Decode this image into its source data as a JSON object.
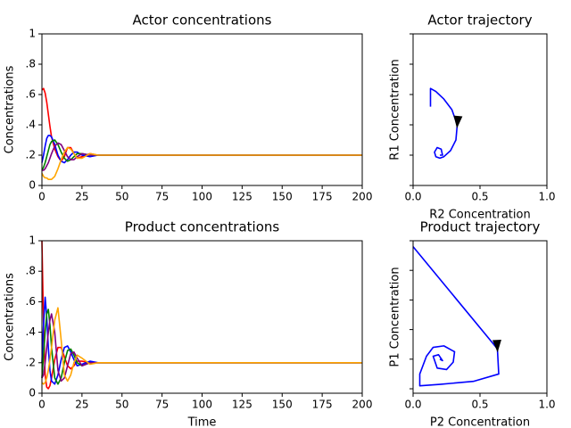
{
  "chart_data": [
    {
      "type": "line",
      "title": "Actor concentrations",
      "ylabel": "Concentrations",
      "x": [
        0,
        1,
        2,
        3,
        4,
        5,
        6,
        8,
        10,
        12,
        14,
        16,
        18,
        20,
        22,
        25,
        30,
        35,
        40,
        50,
        200
      ],
      "series": [
        {
          "color": "#ff0000",
          "values": [
            0.63,
            0.64,
            0.61,
            0.55,
            0.47,
            0.39,
            0.32,
            0.24,
            0.19,
            0.16,
            0.19,
            0.25,
            0.25,
            0.21,
            0.18,
            0.19,
            0.21,
            0.2,
            0.2,
            0.2,
            0.2
          ]
        },
        {
          "color": "#0000ff",
          "values": [
            0.15,
            0.2,
            0.26,
            0.31,
            0.33,
            0.33,
            0.32,
            0.27,
            0.2,
            0.16,
            0.15,
            0.17,
            0.2,
            0.22,
            0.22,
            0.2,
            0.19,
            0.2,
            0.2,
            0.2,
            0.2
          ]
        },
        {
          "color": "#008000",
          "values": [
            0.1,
            0.12,
            0.15,
            0.19,
            0.23,
            0.27,
            0.29,
            0.3,
            0.27,
            0.22,
            0.18,
            0.16,
            0.17,
            0.19,
            0.21,
            0.21,
            0.2,
            0.2,
            0.2,
            0.2,
            0.2
          ]
        },
        {
          "color": "#800080",
          "values": [
            0.1,
            0.1,
            0.11,
            0.13,
            0.15,
            0.18,
            0.21,
            0.26,
            0.28,
            0.27,
            0.23,
            0.19,
            0.17,
            0.17,
            0.19,
            0.21,
            0.2,
            0.2,
            0.2,
            0.2,
            0.2
          ]
        },
        {
          "color": "#ffa500",
          "values": [
            0.08,
            0.06,
            0.05,
            0.05,
            0.04,
            0.04,
            0.04,
            0.06,
            0.11,
            0.17,
            0.22,
            0.25,
            0.24,
            0.21,
            0.18,
            0.18,
            0.21,
            0.2,
            0.2,
            0.2,
            0.2
          ]
        }
      ],
      "xlim": [
        0,
        200
      ],
      "xticks": [
        0,
        25,
        50,
        75,
        100,
        125,
        150,
        175,
        200
      ],
      "ylim": [
        0,
        1
      ],
      "yticks": [
        0,
        {
          "value": 0.2,
          "label": ".2"
        },
        {
          "value": 0.4,
          "label": ".4"
        },
        {
          "value": 0.6,
          "label": ".6"
        },
        {
          "value": 0.8,
          "label": ".8"
        },
        1
      ]
    },
    {
      "type": "line",
      "title": "Actor trajectory",
      "xlabel": "R2 Concentration",
      "ylabel": "R1 Concentration",
      "x": [
        0.13,
        0.13,
        0.17,
        0.23,
        0.29,
        0.33,
        0.32,
        0.28,
        0.23,
        0.2,
        0.17,
        0.16,
        0.18,
        0.21,
        0.22,
        0.2
      ],
      "series": [
        {
          "color": "#0000ff",
          "values": [
            0.52,
            0.64,
            0.62,
            0.57,
            0.5,
            0.4,
            0.3,
            0.23,
            0.19,
            0.18,
            0.19,
            0.22,
            0.25,
            0.24,
            0.2,
            0.2
          ]
        }
      ],
      "xlim": [
        0,
        1
      ],
      "xticks": [
        {
          "value": 0,
          "label": "0.0"
        },
        {
          "value": 0.5,
          "label": "0.5"
        },
        {
          "value": 1,
          "label": "1.0"
        }
      ],
      "ylim": [
        0,
        1
      ],
      "yticks": [
        0,
        0.2,
        0.4,
        0.6,
        0.8,
        1
      ],
      "ytick_labels": false
    },
    {
      "type": "line",
      "title": "Product concentrations",
      "xlabel": "Time",
      "ylabel": "Concentrations",
      "x": [
        0,
        1,
        2,
        3,
        4,
        5,
        6,
        8,
        10,
        12,
        14,
        16,
        18,
        20,
        22,
        25,
        30,
        35,
        40,
        50,
        200
      ],
      "series": [
        {
          "color": "#ff0000",
          "values": [
            1.0,
            0.45,
            0.12,
            0.04,
            0.03,
            0.05,
            0.1,
            0.22,
            0.3,
            0.3,
            0.24,
            0.18,
            0.16,
            0.18,
            0.21,
            0.21,
            0.2,
            0.2,
            0.2,
            0.2,
            0.2
          ]
        },
        {
          "color": "#0000ff",
          "values": [
            0.2,
            0.45,
            0.63,
            0.5,
            0.3,
            0.15,
            0.08,
            0.06,
            0.12,
            0.22,
            0.3,
            0.31,
            0.27,
            0.22,
            0.18,
            0.19,
            0.21,
            0.2,
            0.2,
            0.2,
            0.2
          ]
        },
        {
          "color": "#008000",
          "values": [
            0.1,
            0.25,
            0.4,
            0.52,
            0.55,
            0.45,
            0.3,
            0.1,
            0.06,
            0.1,
            0.2,
            0.28,
            0.29,
            0.25,
            0.2,
            0.18,
            0.2,
            0.2,
            0.2,
            0.2,
            0.2
          ]
        },
        {
          "color": "#800080",
          "values": [
            0.1,
            0.12,
            0.2,
            0.3,
            0.4,
            0.48,
            0.52,
            0.4,
            0.15,
            0.08,
            0.1,
            0.18,
            0.26,
            0.27,
            0.23,
            0.18,
            0.2,
            0.2,
            0.2,
            0.2,
            0.2
          ]
        },
        {
          "color": "#ffa500",
          "values": [
            0.07,
            0.06,
            0.07,
            0.1,
            0.15,
            0.22,
            0.3,
            0.48,
            0.56,
            0.35,
            0.12,
            0.08,
            0.12,
            0.2,
            0.25,
            0.23,
            0.19,
            0.2,
            0.2,
            0.2,
            0.2
          ]
        }
      ],
      "xlim": [
        0,
        200
      ],
      "xticks": [
        0,
        25,
        50,
        75,
        100,
        125,
        150,
        175,
        200
      ],
      "ylim": [
        0,
        1
      ],
      "yticks": [
        0,
        {
          "value": 0.2,
          "label": ".2"
        },
        {
          "value": 0.4,
          "label": ".4"
        },
        {
          "value": 0.6,
          "label": ".6"
        },
        {
          "value": 0.8,
          "label": ".8"
        },
        1
      ]
    },
    {
      "type": "line",
      "title": "Product trajectory",
      "xlabel": "P2 Concentration",
      "ylabel": "P1 Concentration",
      "x": [
        0,
        0.63,
        0.64,
        0.45,
        0.2,
        0.05,
        0.05,
        0.1,
        0.15,
        0.23,
        0.31,
        0.3,
        0.25,
        0.18,
        0.15,
        0.19,
        0.22,
        0.2
      ],
      "series": [
        {
          "color": "#0000ff",
          "values": [
            0.96,
            0.27,
            0.1,
            0.05,
            0.03,
            0.02,
            0.1,
            0.22,
            0.28,
            0.29,
            0.25,
            0.18,
            0.13,
            0.14,
            0.22,
            0.23,
            0.19,
            0.2
          ]
        }
      ],
      "xlim": [
        0,
        1
      ],
      "xticks": [
        {
          "value": 0,
          "label": "0.0"
        },
        {
          "value": 0.5,
          "label": "0.5"
        },
        {
          "value": 1,
          "label": "1.0"
        }
      ],
      "ylim": [
        -0.03,
        1
      ],
      "yticks": [
        0,
        0.2,
        0.4,
        0.6,
        0.8,
        1
      ],
      "ytick_labels": false
    }
  ]
}
